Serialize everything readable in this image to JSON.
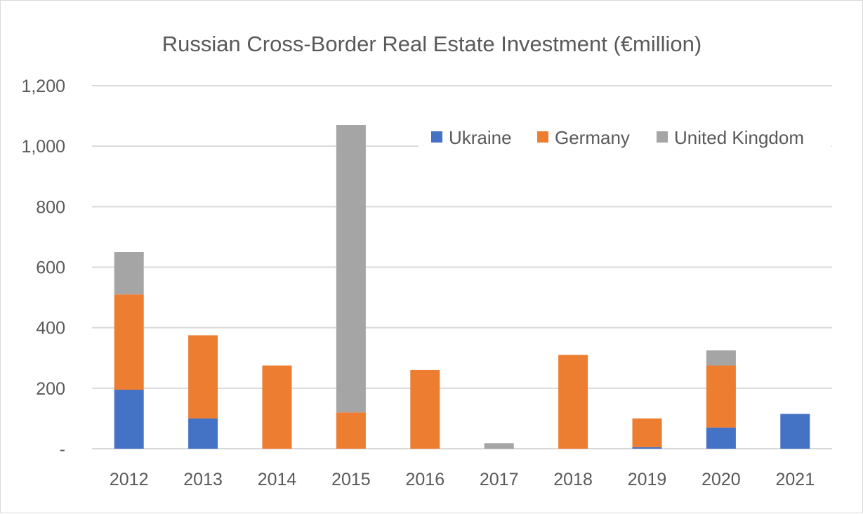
{
  "chart_data": {
    "type": "bar",
    "stacked": true,
    "title": "Russian Cross-Border Real Estate Investment (€million)",
    "xlabel": "",
    "ylabel": "",
    "categories": [
      "2012",
      "2013",
      "2014",
      "2015",
      "2016",
      "2017",
      "2018",
      "2019",
      "2020",
      "2021"
    ],
    "series": [
      {
        "name": "Ukraine",
        "color": "#4472c4",
        "values": [
          195,
          100,
          0,
          0,
          0,
          0,
          0,
          5,
          70,
          115
        ]
      },
      {
        "name": "Germany",
        "color": "#ed7d31",
        "values": [
          315,
          275,
          275,
          120,
          260,
          0,
          310,
          95,
          205,
          0
        ]
      },
      {
        "name": "United Kingdom",
        "color": "#a5a5a5",
        "values": [
          140,
          0,
          0,
          950,
          0,
          18,
          0,
          0,
          50,
          0
        ]
      }
    ],
    "ylim": [
      0,
      1200
    ],
    "yticks": [
      0,
      200,
      400,
      600,
      800,
      1000,
      1200
    ],
    "ytick_labels": [
      "-",
      "200",
      "400",
      "600",
      "800",
      "1,000",
      "1,200"
    ],
    "grid": true,
    "legend_position": "top-right"
  }
}
